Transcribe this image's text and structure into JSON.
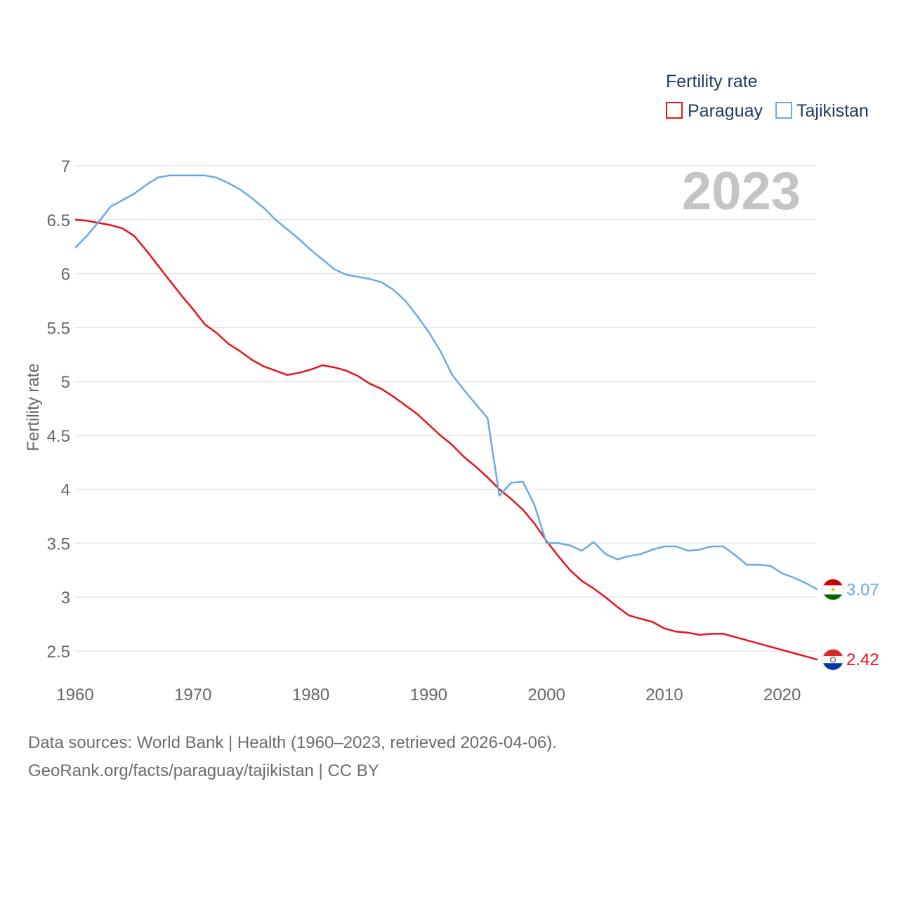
{
  "legend": {
    "title": "Fertility rate",
    "items": [
      {
        "name": "Paraguay",
        "color": "#e8141c"
      },
      {
        "name": "Tajikistan",
        "color": "#6aaae4"
      }
    ]
  },
  "year_display": "2023",
  "chart_data": {
    "type": "line",
    "title": "Fertility rate",
    "xlabel": "",
    "ylabel": "Fertility rate",
    "xlim": [
      1960,
      2023
    ],
    "ylim": [
      2.2,
      7
    ],
    "xticks": [
      1960,
      1970,
      1980,
      1990,
      2000,
      2010,
      2020
    ],
    "yticks": [
      2.5,
      3,
      3.5,
      4,
      4.5,
      5,
      5.5,
      6,
      6.5,
      7
    ],
    "ytick_labels": [
      "2.5",
      "3",
      "3.5",
      "4",
      "4.5",
      "5",
      "5.5",
      "6",
      "6.5",
      "7"
    ],
    "x": [
      1960,
      1961,
      1962,
      1963,
      1964,
      1965,
      1966,
      1967,
      1968,
      1969,
      1970,
      1971,
      1972,
      1973,
      1974,
      1975,
      1976,
      1977,
      1978,
      1979,
      1980,
      1981,
      1982,
      1983,
      1984,
      1985,
      1986,
      1987,
      1988,
      1989,
      1990,
      1991,
      1992,
      1993,
      1994,
      1995,
      1996,
      1997,
      1998,
      1999,
      2000,
      2001,
      2002,
      2003,
      2004,
      2005,
      2006,
      2007,
      2008,
      2009,
      2010,
      2011,
      2012,
      2013,
      2014,
      2015,
      2016,
      2017,
      2018,
      2019,
      2020,
      2021,
      2022,
      2023
    ],
    "series": [
      {
        "name": "Paraguay",
        "color": "#e8141c",
        "end_label": "2.42",
        "values": [
          6.5,
          6.49,
          6.47,
          6.45,
          6.42,
          6.35,
          6.22,
          6.08,
          5.94,
          5.8,
          5.67,
          5.53,
          5.45,
          5.35,
          5.28,
          5.2,
          5.14,
          5.1,
          5.06,
          5.08,
          5.11,
          5.15,
          5.13,
          5.1,
          5.05,
          4.98,
          4.93,
          4.86,
          4.78,
          4.7,
          4.6,
          4.5,
          4.41,
          4.3,
          4.21,
          4.11,
          4.0,
          3.91,
          3.81,
          3.68,
          3.52,
          3.38,
          3.25,
          3.15,
          3.08,
          3.0,
          2.91,
          2.83,
          2.8,
          2.77,
          2.71,
          2.68,
          2.67,
          2.65,
          2.66,
          2.66,
          2.63,
          2.6,
          2.57,
          2.54,
          2.51,
          2.48,
          2.45,
          2.42
        ]
      },
      {
        "name": "Tajikistan",
        "color": "#6aaae4",
        "end_label": "3.07",
        "values": [
          6.24,
          6.35,
          6.48,
          6.62,
          6.68,
          6.74,
          6.82,
          6.89,
          6.91,
          6.91,
          6.91,
          6.91,
          6.89,
          6.84,
          6.78,
          6.7,
          6.61,
          6.5,
          6.41,
          6.32,
          6.22,
          6.13,
          6.04,
          5.99,
          5.97,
          5.95,
          5.92,
          5.85,
          5.75,
          5.61,
          5.46,
          5.28,
          5.06,
          4.92,
          4.79,
          4.66,
          3.94,
          4.06,
          4.07,
          3.85,
          3.5,
          3.5,
          3.48,
          3.43,
          3.51,
          3.4,
          3.35,
          3.38,
          3.4,
          3.44,
          3.47,
          3.47,
          3.43,
          3.44,
          3.47,
          3.47,
          3.39,
          3.3,
          3.3,
          3.29,
          3.22,
          3.18,
          3.13,
          3.07
        ]
      }
    ]
  },
  "source": {
    "line1": "Data sources: World Bank | Health (1960–2023, retrieved 2026-04-06).",
    "line2": "GeoRank.org/facts/paraguay/tajikistan | CC BY"
  }
}
